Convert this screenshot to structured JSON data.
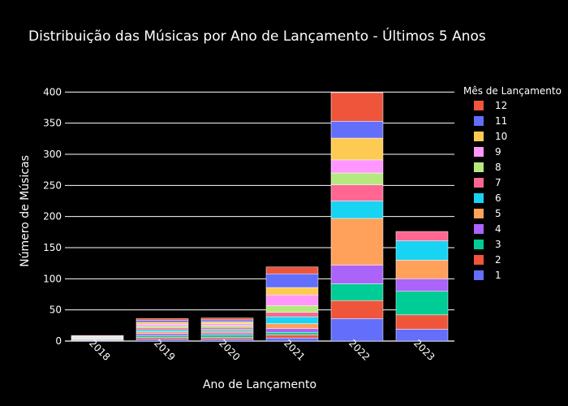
{
  "chart_data": {
    "type": "bar",
    "stacked": true,
    "title": "Distribuição das Músicas por Ano de Lançamento - Últimos 5 Anos",
    "xlabel": "Ano de Lançamento",
    "ylabel": "Número de Músicas",
    "categories": [
      "2018",
      "2019",
      "2020",
      "2021",
      "2022",
      "2023"
    ],
    "ylim": [
      0,
      420
    ],
    "yticks": [
      0,
      50,
      100,
      150,
      200,
      250,
      300,
      350,
      400
    ],
    "legend_title": "Mês de Lançamento",
    "legend_position": "right",
    "series": [
      {
        "name": "1",
        "color": "#636efa",
        "values": [
          1,
          3,
          3,
          5,
          36,
          19
        ]
      },
      {
        "name": "2",
        "color": "#ef553b",
        "values": [
          1,
          3,
          3,
          5,
          29,
          23
        ]
      },
      {
        "name": "3",
        "color": "#00cc96",
        "values": [
          1,
          3,
          4,
          4,
          27,
          38
        ]
      },
      {
        "name": "4",
        "color": "#ab63fa",
        "values": [
          1,
          3,
          3,
          6,
          30,
          20
        ]
      },
      {
        "name": "5",
        "color": "#ffa15a",
        "values": [
          1,
          3,
          3,
          8,
          75,
          30
        ]
      },
      {
        "name": "6",
        "color": "#19d3f3",
        "values": [
          1,
          3,
          3,
          11,
          28,
          31
        ]
      },
      {
        "name": "7",
        "color": "#ff6692",
        "values": [
          0,
          3,
          3,
          7,
          26,
          15
        ]
      },
      {
        "name": "8",
        "color": "#b6e880",
        "values": [
          0,
          3,
          3,
          11,
          19,
          0
        ]
      },
      {
        "name": "9",
        "color": "#ff97ff",
        "values": [
          1,
          3,
          3,
          17,
          21,
          0
        ]
      },
      {
        "name": "10",
        "color": "#fecb52",
        "values": [
          1,
          3,
          3,
          12,
          35,
          0
        ]
      },
      {
        "name": "11",
        "color": "#636efa",
        "values": [
          0,
          3,
          3,
          22,
          27,
          0
        ]
      },
      {
        "name": "12",
        "color": "#ef553b",
        "values": [
          1,
          3,
          3,
          11,
          46,
          0
        ]
      }
    ]
  }
}
